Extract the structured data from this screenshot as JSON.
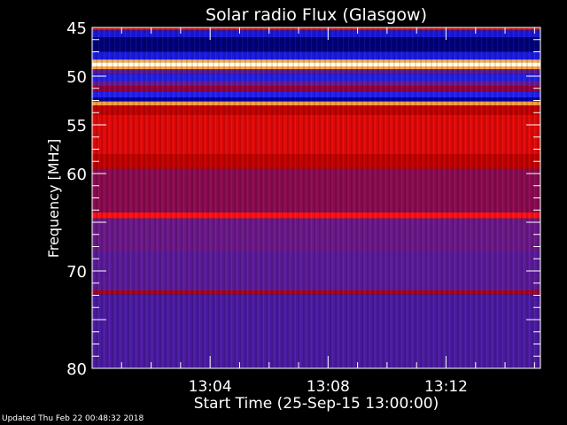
{
  "chart_data": {
    "type": "heatmap",
    "title": "Solar radio Flux (Glasgow)",
    "xlabel": "Start Time (25-Sep-15 13:00:00)",
    "ylabel": "Frequency [MHz]",
    "xlim_minutes_after_13_00": [
      0,
      15.2
    ],
    "ylim": [
      45,
      80
    ],
    "y_inverted": true,
    "xticks": [
      {
        "minute": 4,
        "label": "13:04"
      },
      {
        "minute": 8,
        "label": "13:08"
      },
      {
        "minute": 12,
        "label": "13:12"
      }
    ],
    "yticks": [
      {
        "value": 45,
        "label": "45"
      },
      {
        "value": 50,
        "label": "50"
      },
      {
        "value": 55,
        "label": "55"
      },
      {
        "value": 60,
        "label": "60"
      },
      {
        "value": 70,
        "label": "70"
      },
      {
        "value": 80,
        "label": "80"
      }
    ],
    "colormap": "black-blue-red-yellow-white",
    "bands": [
      {
        "from": 45.0,
        "to": 45.3,
        "color": "#d01010"
      },
      {
        "from": 45.3,
        "to": 46.0,
        "color": "#1818d8"
      },
      {
        "from": 46.0,
        "to": 47.5,
        "color": "#00007a"
      },
      {
        "from": 47.5,
        "to": 48.3,
        "color": "#1a1ae0"
      },
      {
        "from": 48.3,
        "to": 48.6,
        "color": "#ffb050"
      },
      {
        "from": 48.6,
        "to": 49.0,
        "color": "#fffff0"
      },
      {
        "from": 49.0,
        "to": 49.3,
        "color": "#ffa040"
      },
      {
        "from": 49.3,
        "to": 49.8,
        "color": "#5a1890"
      },
      {
        "from": 49.8,
        "to": 50.5,
        "color": "#2020e8"
      },
      {
        "from": 50.5,
        "to": 51.0,
        "color": "#6a1890"
      },
      {
        "from": 51.0,
        "to": 51.6,
        "color": "#900040"
      },
      {
        "from": 51.6,
        "to": 52.2,
        "color": "#2020f0"
      },
      {
        "from": 52.2,
        "to": 52.6,
        "color": "#0000a0"
      },
      {
        "from": 52.6,
        "to": 53.0,
        "color": "#ff9a40"
      },
      {
        "from": 53.0,
        "to": 54.0,
        "color": "#c00000"
      },
      {
        "from": 54.0,
        "to": 58.0,
        "color": "#e00808"
      },
      {
        "from": 58.0,
        "to": 59.5,
        "color": "#c00000"
      },
      {
        "from": 59.5,
        "to": 64.0,
        "color": "#8a0a50"
      },
      {
        "from": 64.0,
        "to": 64.6,
        "color": "#ff1010"
      },
      {
        "from": 64.6,
        "to": 68.0,
        "color": "#6a1888"
      },
      {
        "from": 68.0,
        "to": 72.0,
        "color": "#5a1a98"
      },
      {
        "from": 72.0,
        "to": 72.4,
        "color": "#b00010"
      },
      {
        "from": 72.4,
        "to": 80.0,
        "color": "#4a1aa0"
      }
    ]
  },
  "footer": {
    "updated": "Updated Thu Feb 22 00:48:32 2018"
  }
}
